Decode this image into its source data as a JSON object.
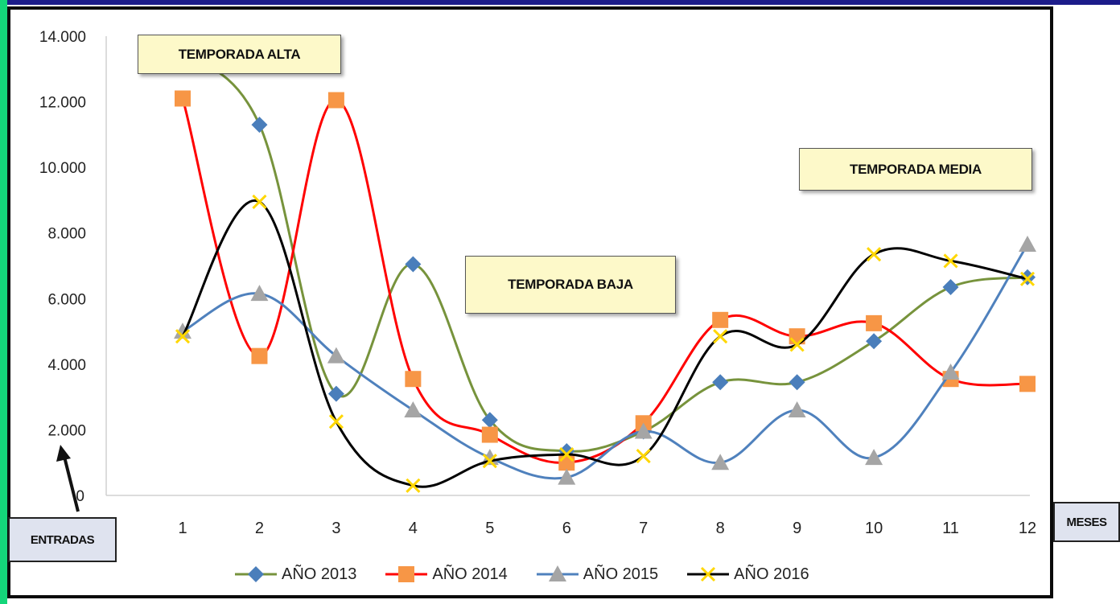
{
  "chart_data": {
    "type": "line",
    "title": "",
    "xlabel": "MESES",
    "ylabel": "ENTRADAS",
    "categories": [
      "1",
      "2",
      "3",
      "4",
      "5",
      "6",
      "7",
      "8",
      "9",
      "10",
      "11",
      "12"
    ],
    "y_ticks": [
      "0",
      "2.000",
      "4.000",
      "6.000",
      "8.000",
      "10.000",
      "12.000",
      "14.000"
    ],
    "ylim": [
      0,
      14000
    ],
    "grid": false,
    "legend_position": "bottom",
    "series": [
      {
        "name": "AÑO 2013",
        "color": "#4a7ebb",
        "line_color": "#77933c",
        "marker": "diamond",
        "values": [
          13500,
          11300,
          3100,
          7050,
          2300,
          1350,
          1950,
          3450,
          3450,
          4700,
          6350,
          6650
        ]
      },
      {
        "name": "AÑO 2014",
        "color": "#f79646",
        "line_color": "#ff0000",
        "marker": "square",
        "values": [
          12100,
          4250,
          12050,
          3550,
          1850,
          1000,
          2200,
          5350,
          4850,
          5250,
          3550,
          3400
        ]
      },
      {
        "name": "AÑO 2015",
        "color": "#a5a5a5",
        "line_color": "#4f81bd",
        "marker": "triangle",
        "values": [
          5000,
          6150,
          4250,
          2600,
          1150,
          550,
          1950,
          1000,
          2600,
          1150,
          3750,
          7650
        ]
      },
      {
        "name": "AÑO 2016",
        "color": "#ffd700",
        "line_color": "#000000",
        "marker": "x",
        "values": [
          4850,
          8950,
          2250,
          300,
          1050,
          1250,
          1200,
          4850,
          4600,
          7350,
          7150,
          6600
        ]
      }
    ],
    "annotations": [
      "TEMPORADA ALTA",
      "TEMPORADA BAJA",
      "TEMPORADA MEDIA"
    ]
  },
  "labels": {
    "entradas": "ENTRADAS",
    "meses": "MESES"
  }
}
